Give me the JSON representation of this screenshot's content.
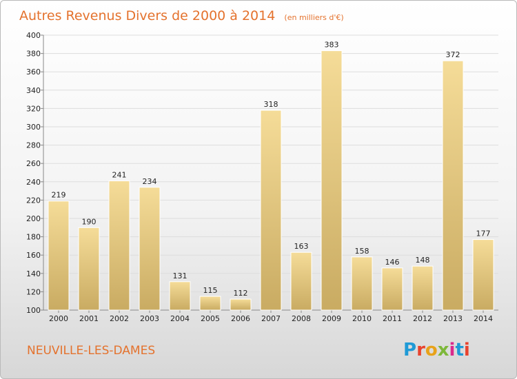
{
  "chart_data": {
    "type": "bar",
    "title": "Autres Revenus Divers de 2000 à 2014",
    "unit_note": "(en milliers d'€)",
    "categories": [
      "2000",
      "2001",
      "2002",
      "2003",
      "2004",
      "2005",
      "2006",
      "2007",
      "2008",
      "2009",
      "2010",
      "2011",
      "2012",
      "2013",
      "2014"
    ],
    "values": [
      219,
      190,
      241,
      234,
      131,
      115,
      112,
      318,
      163,
      383,
      158,
      146,
      148,
      372,
      177
    ],
    "ylim": [
      100,
      400
    ],
    "yticks": [
      100,
      120,
      140,
      160,
      180,
      200,
      220,
      240,
      260,
      280,
      300,
      320,
      340,
      360,
      380,
      400
    ],
    "grid": true,
    "xlabel": "",
    "ylabel": ""
  },
  "location": "NEUVILLE-LES-DAMES",
  "logo": {
    "text": "Proxiti",
    "letter_colors": [
      "#1f9ad6",
      "#e8432e",
      "#e8a21a",
      "#7db83a",
      "#d92a8d",
      "#1f9ad6",
      "#e8432e"
    ]
  },
  "colors": {
    "accent": "#e4722d",
    "bar_top": "#f5dc98",
    "bar_bottom": "#c9ab62",
    "grid": "#dddddd",
    "axis": "#888888"
  }
}
